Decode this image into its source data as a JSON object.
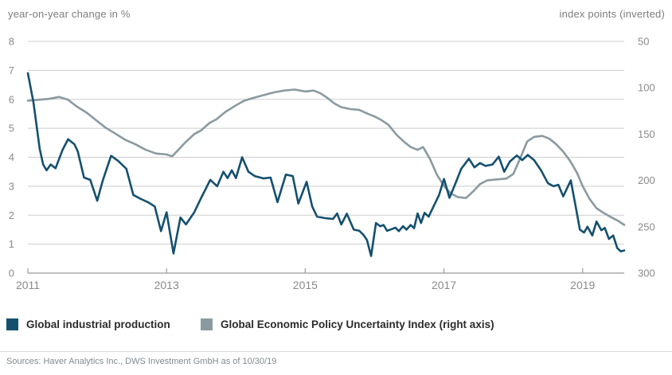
{
  "header": {
    "left_axis_label": "year-on-year change in %",
    "right_axis_label": "index points (inverted)"
  },
  "legend": {
    "items": [
      {
        "label": "Global industrial production",
        "color": "#14506e"
      },
      {
        "label": "Global Economic Policy Uncertainty Index (right axis)",
        "color": "#8a9aa1"
      }
    ]
  },
  "footer": {
    "source": "Sources: Haver Analytics Inc., DWS Investment GmbH as of 10/30/19"
  },
  "chart_data": {
    "type": "line",
    "title": "",
    "grid": "horizontal",
    "legend_position": "bottom",
    "style": {
      "grid_color": "#cdcdcd",
      "axis_color": "#9a9a9a",
      "tick_label_color": "#8a8a8a",
      "background": "#ffffff"
    },
    "x_axis": {
      "start": 2011,
      "end": 2019.6,
      "ticks": [
        2011,
        2013,
        2015,
        2017,
        2019
      ]
    },
    "left_axis": {
      "label": "year-on-year change in %",
      "min": 0,
      "max": 8,
      "ticks": [
        0,
        1,
        2,
        3,
        4,
        5,
        6,
        7,
        8
      ]
    },
    "right_axis": {
      "label": "index points (inverted)",
      "min": 50,
      "max": 300,
      "inverted": true,
      "ticks": [
        50,
        100,
        150,
        200,
        250,
        300
      ]
    },
    "series": [
      {
        "name": "Global industrial production",
        "axis": "left",
        "color": "#14506e",
        "points": [
          [
            2011.0,
            6.9
          ],
          [
            2011.08,
            5.9
          ],
          [
            2011.17,
            4.3
          ],
          [
            2011.22,
            3.75
          ],
          [
            2011.27,
            3.55
          ],
          [
            2011.33,
            3.75
          ],
          [
            2011.4,
            3.62
          ],
          [
            2011.5,
            4.25
          ],
          [
            2011.58,
            4.62
          ],
          [
            2011.67,
            4.45
          ],
          [
            2011.72,
            4.2
          ],
          [
            2011.81,
            3.3
          ],
          [
            2011.9,
            3.22
          ],
          [
            2012.0,
            2.5
          ],
          [
            2012.08,
            3.2
          ],
          [
            2012.2,
            4.05
          ],
          [
            2012.3,
            3.88
          ],
          [
            2012.42,
            3.6
          ],
          [
            2012.52,
            2.7
          ],
          [
            2012.62,
            2.57
          ],
          [
            2012.73,
            2.45
          ],
          [
            2012.83,
            2.3
          ],
          [
            2012.92,
            1.45
          ],
          [
            2013.0,
            2.1
          ],
          [
            2013.1,
            0.68
          ],
          [
            2013.2,
            1.92
          ],
          [
            2013.28,
            1.68
          ],
          [
            2013.4,
            2.1
          ],
          [
            2013.5,
            2.6
          ],
          [
            2013.63,
            3.22
          ],
          [
            2013.73,
            3.0
          ],
          [
            2013.82,
            3.5
          ],
          [
            2013.88,
            3.28
          ],
          [
            2013.94,
            3.55
          ],
          [
            2014.0,
            3.28
          ],
          [
            2014.09,
            4.0
          ],
          [
            2014.18,
            3.5
          ],
          [
            2014.27,
            3.35
          ],
          [
            2014.4,
            3.27
          ],
          [
            2014.5,
            3.3
          ],
          [
            2014.6,
            2.45
          ],
          [
            2014.72,
            3.4
          ],
          [
            2014.82,
            3.35
          ],
          [
            2014.9,
            2.4
          ],
          [
            2015.02,
            3.15
          ],
          [
            2015.1,
            2.3
          ],
          [
            2015.17,
            1.95
          ],
          [
            2015.28,
            1.9
          ],
          [
            2015.4,
            1.87
          ],
          [
            2015.46,
            2.06
          ],
          [
            2015.52,
            1.68
          ],
          [
            2015.6,
            2.05
          ],
          [
            2015.7,
            1.5
          ],
          [
            2015.78,
            1.46
          ],
          [
            2015.84,
            1.32
          ],
          [
            2015.89,
            1.14
          ],
          [
            2015.95,
            0.59
          ],
          [
            2016.02,
            1.73
          ],
          [
            2016.08,
            1.62
          ],
          [
            2016.13,
            1.66
          ],
          [
            2016.18,
            1.46
          ],
          [
            2016.25,
            1.52
          ],
          [
            2016.3,
            1.57
          ],
          [
            2016.35,
            1.45
          ],
          [
            2016.41,
            1.62
          ],
          [
            2016.46,
            1.5
          ],
          [
            2016.52,
            1.66
          ],
          [
            2016.57,
            1.55
          ],
          [
            2016.62,
            2.06
          ],
          [
            2016.67,
            1.73
          ],
          [
            2016.72,
            2.08
          ],
          [
            2016.78,
            1.95
          ],
          [
            2016.85,
            2.3
          ],
          [
            2016.93,
            2.7
          ],
          [
            2017.0,
            3.25
          ],
          [
            2017.08,
            2.6
          ],
          [
            2017.15,
            3.0
          ],
          [
            2017.25,
            3.6
          ],
          [
            2017.36,
            3.95
          ],
          [
            2017.44,
            3.65
          ],
          [
            2017.52,
            3.8
          ],
          [
            2017.6,
            3.7
          ],
          [
            2017.7,
            3.75
          ],
          [
            2017.79,
            4.02
          ],
          [
            2017.87,
            3.5
          ],
          [
            2017.95,
            3.85
          ],
          [
            2018.05,
            4.06
          ],
          [
            2018.13,
            3.9
          ],
          [
            2018.21,
            4.08
          ],
          [
            2018.3,
            3.9
          ],
          [
            2018.4,
            3.55
          ],
          [
            2018.5,
            3.1
          ],
          [
            2018.58,
            3.0
          ],
          [
            2018.65,
            3.05
          ],
          [
            2018.72,
            2.65
          ],
          [
            2018.83,
            3.2
          ],
          [
            2018.9,
            2.3
          ],
          [
            2018.96,
            1.5
          ],
          [
            2019.02,
            1.4
          ],
          [
            2019.07,
            1.6
          ],
          [
            2019.14,
            1.3
          ],
          [
            2019.2,
            1.78
          ],
          [
            2019.27,
            1.48
          ],
          [
            2019.32,
            1.56
          ],
          [
            2019.38,
            1.18
          ],
          [
            2019.44,
            1.3
          ],
          [
            2019.5,
            0.86
          ],
          [
            2019.55,
            0.75
          ],
          [
            2019.6,
            0.78
          ]
        ]
      },
      {
        "name": "Global Economic Policy Uncertainty Index (right axis)",
        "axis": "right",
        "color": "#8a9aa1",
        "points": [
          [
            2011.0,
            114
          ],
          [
            2011.15,
            113
          ],
          [
            2011.3,
            112
          ],
          [
            2011.45,
            110
          ],
          [
            2011.58,
            113
          ],
          [
            2011.7,
            120
          ],
          [
            2011.85,
            127
          ],
          [
            2012.0,
            136
          ],
          [
            2012.12,
            143
          ],
          [
            2012.25,
            149
          ],
          [
            2012.4,
            156
          ],
          [
            2012.55,
            161
          ],
          [
            2012.7,
            167
          ],
          [
            2012.85,
            171
          ],
          [
            2013.0,
            172
          ],
          [
            2013.08,
            174
          ],
          [
            2013.17,
            167
          ],
          [
            2013.27,
            159
          ],
          [
            2013.4,
            150
          ],
          [
            2013.5,
            146
          ],
          [
            2013.62,
            138
          ],
          [
            2013.72,
            134
          ],
          [
            2013.85,
            126
          ],
          [
            2014.0,
            119
          ],
          [
            2014.12,
            114
          ],
          [
            2014.25,
            111
          ],
          [
            2014.4,
            108
          ],
          [
            2014.55,
            105
          ],
          [
            2014.7,
            103
          ],
          [
            2014.85,
            102
          ],
          [
            2015.0,
            104
          ],
          [
            2015.12,
            103
          ],
          [
            2015.22,
            106
          ],
          [
            2015.32,
            111
          ],
          [
            2015.42,
            117
          ],
          [
            2015.52,
            121
          ],
          [
            2015.65,
            123
          ],
          [
            2015.78,
            124
          ],
          [
            2015.9,
            128
          ],
          [
            2016.0,
            131
          ],
          [
            2016.1,
            135
          ],
          [
            2016.2,
            140
          ],
          [
            2016.32,
            151
          ],
          [
            2016.42,
            158
          ],
          [
            2016.52,
            164
          ],
          [
            2016.62,
            167
          ],
          [
            2016.7,
            164
          ],
          [
            2016.8,
            177
          ],
          [
            2016.9,
            194
          ],
          [
            2017.0,
            206
          ],
          [
            2017.1,
            214
          ],
          [
            2017.2,
            218
          ],
          [
            2017.32,
            219
          ],
          [
            2017.42,
            212
          ],
          [
            2017.52,
            204
          ],
          [
            2017.62,
            200
          ],
          [
            2017.75,
            199
          ],
          [
            2017.9,
            198
          ],
          [
            2018.0,
            193
          ],
          [
            2018.1,
            176
          ],
          [
            2018.2,
            158
          ],
          [
            2018.3,
            153
          ],
          [
            2018.42,
            152
          ],
          [
            2018.52,
            155
          ],
          [
            2018.62,
            161
          ],
          [
            2018.72,
            169
          ],
          [
            2018.82,
            179
          ],
          [
            2018.92,
            192
          ],
          [
            2019.0,
            206
          ],
          [
            2019.1,
            220
          ],
          [
            2019.2,
            230
          ],
          [
            2019.3,
            235
          ],
          [
            2019.42,
            240
          ],
          [
            2019.52,
            244
          ],
          [
            2019.6,
            248
          ]
        ]
      }
    ]
  }
}
